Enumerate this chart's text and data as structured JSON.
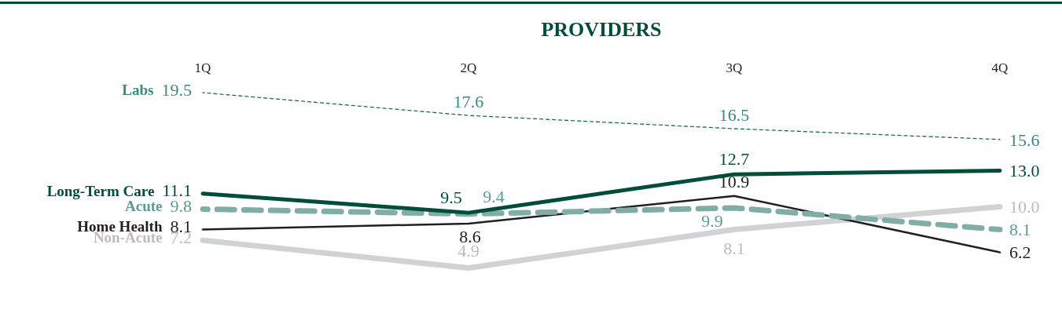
{
  "chart_data": {
    "type": "line",
    "title": "PROVIDERS",
    "categories": [
      "1Q",
      "2Q",
      "3Q",
      "4Q"
    ],
    "legend": false,
    "grid": false,
    "marker": "none",
    "series": [
      {
        "name": "Labs",
        "color": "#1f6b58",
        "values": [
          19.5,
          17.6,
          16.5,
          15.6
        ],
        "value_labels": [
          "19.5",
          "17.6",
          "16.5",
          "15.6"
        ],
        "line_style": "dotted"
      },
      {
        "name": "Long-Term Care",
        "color": "#004d3a",
        "values": [
          11.1,
          9.5,
          12.7,
          13.0
        ],
        "value_labels": [
          "11.1",
          "9.5",
          "12.7",
          "13.0"
        ],
        "line_style": "solid"
      },
      {
        "name": "Acute",
        "color": "#80aea4",
        "values": [
          9.8,
          9.4,
          9.9,
          8.1
        ],
        "value_labels": [
          "9.8",
          "9.4",
          "9.9",
          "8.1"
        ],
        "line_style": "dashed"
      },
      {
        "name": "Home Health",
        "color": "#231f20",
        "values": [
          8.1,
          8.6,
          10.9,
          6.2
        ],
        "value_labels": [
          "8.1",
          "8.6",
          "10.9",
          "6.2"
        ],
        "line_style": "solid"
      },
      {
        "name": "Non-Acute",
        "color": "#d1d2d3",
        "values": [
          7.2,
          4.9,
          8.1,
          10.0
        ],
        "value_labels": [
          "7.2",
          "4.9",
          "8.1",
          "10.0"
        ],
        "line_style": "solid"
      }
    ]
  }
}
